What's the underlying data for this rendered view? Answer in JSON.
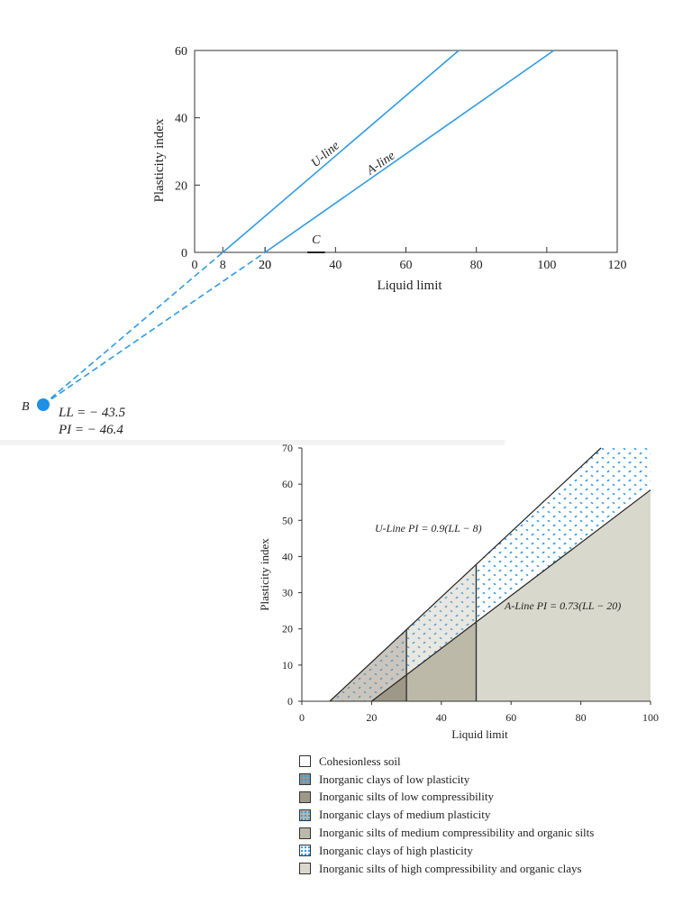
{
  "chart_data": [
    {
      "type": "line",
      "xlabel": "Liquid limit",
      "ylabel": "Plasticity index",
      "xlim": [
        0,
        120
      ],
      "ylim": [
        0,
        60
      ],
      "xticks": [
        "0",
        "20",
        "40",
        "60",
        "80",
        "100",
        "120"
      ],
      "yticks": [
        "0",
        "20",
        "40",
        "60"
      ],
      "extra_xtick_labels": [
        "8",
        "20"
      ],
      "series": [
        {
          "name": "U-line",
          "x": [
            8,
            75
          ],
          "y": [
            0,
            60
          ],
          "color": "#2f9be6"
        },
        {
          "name": "A-line",
          "x": [
            20,
            102
          ],
          "y": [
            0,
            60
          ],
          "color": "#2f9be6"
        }
      ],
      "extensions": [
        {
          "x": [
            -43.5,
            8
          ],
          "y": [
            -46.4,
            0
          ],
          "style": "dashed"
        },
        {
          "x": [
            -43.5,
            20
          ],
          "y": [
            -46.4,
            0
          ],
          "style": "dashed"
        }
      ],
      "point_C": {
        "label": "C",
        "x": [
          32,
          37
        ],
        "y": 0
      },
      "point_B": {
        "label": "B",
        "ll_text": "LL = − 43.5",
        "pi_text": "PI = − 46.4",
        "color": "#1e90e6"
      }
    },
    {
      "type": "area",
      "xlabel": "Liquid limit",
      "ylabel": "Plasticity index",
      "xlim": [
        0,
        100
      ],
      "ylim": [
        0,
        70
      ],
      "xticks": [
        "0",
        "20",
        "40",
        "60",
        "80",
        "100"
      ],
      "yticks": [
        "0",
        "10",
        "20",
        "30",
        "40",
        "50",
        "60",
        "70"
      ],
      "u_line_label": "U-Line PI = 0.9(LL − 8)",
      "a_line_label": "A-Line PI = 0.73(LL − 20)",
      "u_line": {
        "slope": 0.9,
        "intercept_ll": 8
      },
      "a_line": {
        "slope": 0.73,
        "intercept_ll": 20
      },
      "boundaries_ll": [
        30,
        50
      ],
      "colors": {
        "clay_fill": "#ffffff",
        "clay_dots": "#3a9ce8",
        "silt_low": "#9e9888",
        "silt_med": "#bdb9a8",
        "silt_high": "#d9d8cc",
        "cohesionless": "#ffffff"
      }
    }
  ],
  "legend": [
    {
      "label": "Cohesionless soil",
      "swatch": "cohesionless"
    },
    {
      "label": "Inorganic clays of low plasticity",
      "swatch": "clay_low"
    },
    {
      "label": "Inorganic silts of low compressibility",
      "swatch": "silt_low"
    },
    {
      "label": "Inorganic clays of medium plasticity",
      "swatch": "clay_med"
    },
    {
      "label": "Inorganic silts of medium compressibility and organic silts",
      "swatch": "silt_med"
    },
    {
      "label": "Inorganic clays of high plasticity",
      "swatch": "clay_high"
    },
    {
      "label": "Inorganic silts of high compressibility and organic clays",
      "swatch": "silt_high"
    }
  ]
}
